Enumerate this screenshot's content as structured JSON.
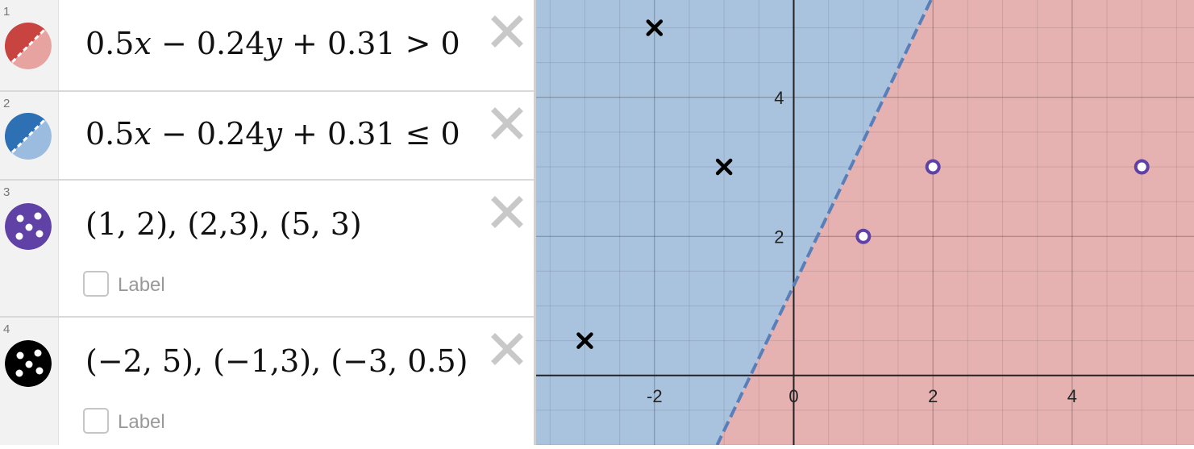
{
  "expressions": [
    {
      "num": "1",
      "left": "0.5",
      "xvar": "x",
      "mid": " − 0.24",
      "yvar": "y",
      "right": " + 0.31 > 0",
      "color": "#c74440",
      "icon": "shaded-inequality-icon"
    },
    {
      "num": "2",
      "left": "0.5",
      "xvar": "x",
      "mid": " − 0.24",
      "yvar": "y",
      "right": " + 0.31 ≤ 0",
      "color": "#2d70b3",
      "icon": "shaded-inequality-icon"
    },
    {
      "num": "3",
      "text": "(1, 2), (2,3), (5, 3)",
      "label": "Label",
      "color": "#6042a6",
      "icon": "points-icon"
    },
    {
      "num": "4",
      "text": "(−2, 5), (−1,3), (−3, 0.5)",
      "label": "Label",
      "color": "#000000",
      "icon": "points-icon"
    }
  ],
  "graph": {
    "x_ticks": [
      "-2",
      "0",
      "2",
      "4"
    ],
    "y_ticks": [
      "2",
      "4"
    ],
    "xlim": [
      -3.7,
      5.75
    ],
    "ylim": [
      -1.0,
      5.4
    ],
    "line": {
      "slope": 2.0833,
      "intercept": 1.2917
    },
    "region_above_color": "#a9c3df",
    "region_below_color": "#e6b2b1",
    "open_points": [
      [
        1,
        2
      ],
      [
        2,
        3
      ],
      [
        5,
        3
      ]
    ],
    "cross_points": [
      [
        -2,
        5
      ],
      [
        -1,
        3
      ],
      [
        -3,
        0.5
      ]
    ]
  }
}
